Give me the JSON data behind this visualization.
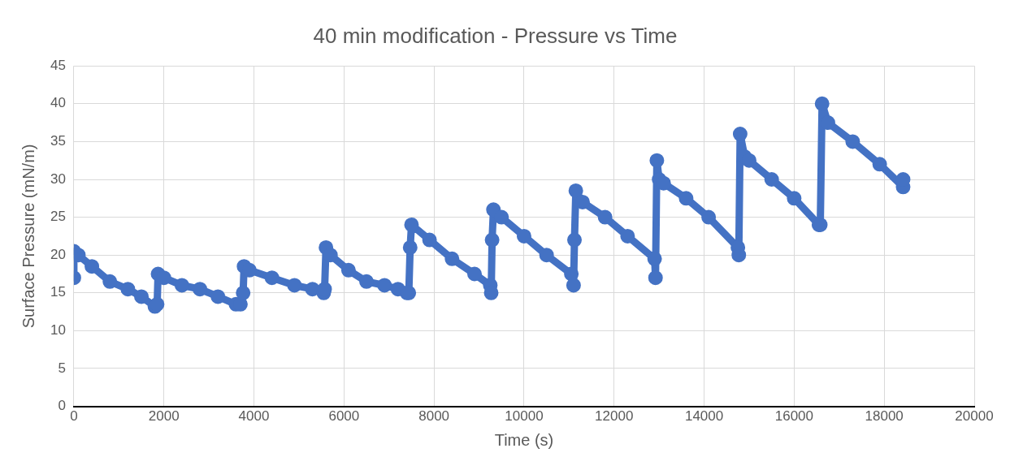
{
  "chart_data": {
    "type": "line",
    "title": "40 min modification - Pressure vs Time",
    "xlabel": "Time (s)",
    "ylabel": "Surface Pressure (mN/m)",
    "series": [
      {
        "color": "#4472c4",
        "x": [
          0,
          0,
          100,
          400,
          800,
          1200,
          1500,
          1800,
          1850,
          1870,
          2000,
          2400,
          2800,
          3200,
          3600,
          3700,
          3760,
          3780,
          3900,
          4400,
          4900,
          5300,
          5550,
          5570,
          5600,
          5700,
          6100,
          6500,
          6900,
          7200,
          7400,
          7440,
          7470,
          7500,
          7900,
          8400,
          8900,
          9250,
          9270,
          9290,
          9320,
          9500,
          10000,
          10500,
          11050,
          11100,
          11120,
          11150,
          11300,
          11800,
          12300,
          12900,
          12920,
          12950,
          13000,
          13100,
          13600,
          14100,
          14750,
          14770,
          14800,
          14900,
          15000,
          15500,
          16000,
          16550,
          16580,
          16620,
          16750,
          17300,
          17900,
          18420,
          18420
        ],
        "values": [
          17,
          20.5,
          20,
          18.5,
          16.5,
          15.5,
          14.5,
          13.2,
          13.5,
          17.5,
          17,
          16,
          15.5,
          14.5,
          13.5,
          13.5,
          15,
          18.5,
          18,
          17,
          16,
          15.5,
          15,
          15.5,
          21,
          20,
          18,
          16.5,
          16,
          15.5,
          15,
          15,
          21,
          24,
          22,
          19.5,
          17.5,
          16,
          15,
          22,
          26,
          25,
          22.5,
          20,
          17.5,
          16,
          22,
          28.5,
          27,
          25,
          22.5,
          19.5,
          17,
          32.5,
          30,
          29.5,
          27.5,
          25,
          21,
          20,
          36,
          33,
          32.5,
          30,
          27.5,
          24,
          24,
          40,
          37.5,
          35,
          32,
          29,
          30
        ]
      }
    ],
    "xlim": [
      0,
      20000
    ],
    "xticks": [
      0,
      2000,
      4000,
      6000,
      8000,
      10000,
      12000,
      14000,
      16000,
      18000,
      20000
    ],
    "ylim": [
      0,
      45
    ],
    "yticks": [
      0,
      5,
      10,
      15,
      20,
      25,
      30,
      35,
      40,
      45
    ],
    "grid": true,
    "legend": false,
    "marker": "circle",
    "line_style": "solid"
  }
}
